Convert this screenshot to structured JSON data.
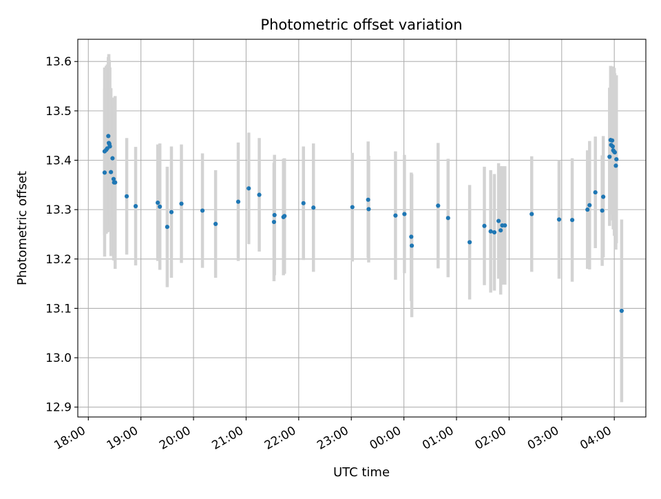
{
  "chart_data": {
    "type": "scatter",
    "title": "Photometric offset variation",
    "xlabel": "UTC time",
    "ylabel": "Photometric offset",
    "x_unit": "UTC time (hours after 18:00)",
    "xlim": [
      -0.2,
      10.6
    ],
    "ylim": [
      12.88,
      13.645
    ],
    "xticks": [
      0,
      1,
      2,
      3,
      4,
      5,
      6,
      7,
      8,
      9,
      10
    ],
    "xtick_labels": [
      "18:00",
      "19:00",
      "20:00",
      "21:00",
      "22:00",
      "23:00",
      "00:00",
      "01:00",
      "02:00",
      "03:00",
      "04:00"
    ],
    "yticks": [
      12.9,
      13.0,
      13.1,
      13.2,
      13.3,
      13.4,
      13.5,
      13.6
    ],
    "ytick_labels": [
      "12.9",
      "13.0",
      "13.1",
      "13.2",
      "13.3",
      "13.4",
      "13.5",
      "13.6"
    ],
    "grid": true,
    "marker_color": "#1f77b4",
    "errorbar_color": "#d3d3d3",
    "series": [
      {
        "x": [
          0.31,
          0.31,
          0.34,
          0.36,
          0.38,
          0.39,
          0.4,
          0.41,
          0.43,
          0.46,
          0.48,
          0.49,
          0.51,
          0.73,
          0.9,
          1.32,
          1.36,
          1.5,
          1.58,
          1.77,
          2.17,
          2.42,
          2.85,
          3.05,
          3.25,
          3.53,
          3.54,
          3.71,
          3.73,
          4.09,
          4.28,
          5.02,
          5.32,
          5.33,
          5.84,
          6.01,
          6.14,
          6.15,
          6.65,
          6.84,
          7.25,
          7.53,
          7.65,
          7.72,
          7.8,
          7.84,
          7.87,
          7.92,
          8.43,
          8.95,
          9.2,
          9.49,
          9.53,
          9.64,
          9.77,
          9.79,
          9.91,
          9.93,
          9.94,
          9.96,
          9.97,
          9.98,
          10.0,
          10.01,
          10.03,
          10.04,
          10.14
        ],
        "y": [
          13.375,
          13.418,
          13.421,
          13.424,
          13.449,
          13.435,
          13.433,
          13.428,
          13.376,
          13.404,
          13.362,
          13.355,
          13.355,
          13.327,
          13.307,
          13.314,
          13.306,
          13.265,
          13.295,
          13.312,
          13.298,
          13.271,
          13.316,
          13.343,
          13.33,
          13.275,
          13.289,
          13.285,
          13.287,
          13.313,
          13.304,
          13.305,
          13.32,
          13.301,
          13.288,
          13.291,
          13.245,
          13.227,
          13.308,
          13.283,
          13.234,
          13.267,
          13.256,
          13.254,
          13.277,
          13.258,
          13.268,
          13.268,
          13.291,
          13.28,
          13.279,
          13.3,
          13.309,
          13.335,
          13.298,
          13.326,
          13.407,
          13.441,
          13.431,
          13.44,
          13.428,
          13.42,
          13.417,
          13.416,
          13.389,
          13.402,
          13.095
        ],
        "yerr": [
          0.17,
          0.17,
          0.17,
          0.17,
          0.16,
          0.18,
          0.17,
          0.16,
          0.17,
          0.12,
          0.165,
          0.155,
          0.175,
          0.118,
          0.12,
          0.118,
          0.128,
          0.122,
          0.133,
          0.12,
          0.116,
          0.109,
          0.12,
          0.113,
          0.115,
          0.12,
          0.122,
          0.118,
          0.117,
          0.115,
          0.13,
          0.11,
          0.118,
          0.108,
          0.13,
          0.12,
          0.13,
          0.145,
          0.127,
          0.12,
          0.116,
          0.12,
          0.124,
          0.118,
          0.117,
          0.13,
          0.12,
          0.12,
          0.117,
          0.12,
          0.125,
          0.12,
          0.13,
          0.113,
          0.112,
          0.123,
          0.14,
          0.15,
          0.14,
          0.15,
          0.15,
          0.16,
          0.17,
          0.16,
          0.17,
          0.17,
          0.185
        ]
      }
    ]
  }
}
